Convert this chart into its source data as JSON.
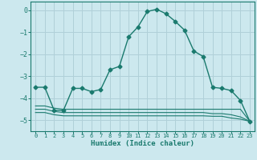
{
  "title": "",
  "xlabel": "Humidex (Indice chaleur)",
  "bg_color": "#cce8ee",
  "grid_color": "#b0d0d8",
  "line_color": "#1a7a6e",
  "xlim": [
    -0.5,
    23.5
  ],
  "ylim": [
    -5.5,
    0.4
  ],
  "xticks": [
    0,
    1,
    2,
    3,
    4,
    5,
    6,
    7,
    8,
    9,
    10,
    11,
    12,
    13,
    14,
    15,
    16,
    17,
    18,
    19,
    20,
    21,
    22,
    23
  ],
  "yticks": [
    0,
    -1,
    -2,
    -3,
    -4,
    -5
  ],
  "main_curve": {
    "x": [
      0,
      1,
      2,
      3,
      4,
      5,
      6,
      7,
      8,
      9,
      10,
      11,
      12,
      13,
      14,
      15,
      16,
      17,
      18,
      19,
      20,
      21,
      22,
      23
    ],
    "y": [
      -3.5,
      -3.5,
      -4.55,
      -4.55,
      -3.55,
      -3.55,
      -3.7,
      -3.6,
      -2.7,
      -2.55,
      -1.2,
      -0.75,
      -0.05,
      0.05,
      -0.15,
      -0.5,
      -0.9,
      -1.85,
      -2.1,
      -3.5,
      -3.55,
      -3.65,
      -4.1,
      -5.05
    ]
  },
  "flat_curves": [
    {
      "x": [
        0,
        1,
        2,
        3,
        4,
        5,
        6,
        7,
        8,
        9,
        10,
        11,
        12,
        13,
        14,
        15,
        16,
        17,
        18,
        19,
        20,
        21,
        22,
        23
      ],
      "y": [
        -4.35,
        -4.35,
        -4.45,
        -4.5,
        -4.5,
        -4.5,
        -4.5,
        -4.5,
        -4.5,
        -4.5,
        -4.5,
        -4.5,
        -4.5,
        -4.5,
        -4.5,
        -4.5,
        -4.5,
        -4.5,
        -4.5,
        -4.5,
        -4.5,
        -4.5,
        -4.5,
        -5.05
      ]
    },
    {
      "x": [
        0,
        1,
        2,
        3,
        4,
        5,
        6,
        7,
        8,
        9,
        10,
        11,
        12,
        13,
        14,
        15,
        16,
        17,
        18,
        19,
        20,
        21,
        22,
        23
      ],
      "y": [
        -4.5,
        -4.5,
        -4.6,
        -4.65,
        -4.65,
        -4.65,
        -4.65,
        -4.65,
        -4.65,
        -4.65,
        -4.65,
        -4.65,
        -4.65,
        -4.65,
        -4.65,
        -4.65,
        -4.65,
        -4.65,
        -4.65,
        -4.7,
        -4.7,
        -4.75,
        -4.85,
        -5.05
      ]
    },
    {
      "x": [
        0,
        1,
        2,
        3,
        4,
        5,
        6,
        7,
        8,
        9,
        10,
        11,
        12,
        13,
        14,
        15,
        16,
        17,
        18,
        19,
        20,
        21,
        22,
        23
      ],
      "y": [
        -4.65,
        -4.65,
        -4.75,
        -4.8,
        -4.8,
        -4.8,
        -4.8,
        -4.8,
        -4.8,
        -4.8,
        -4.8,
        -4.8,
        -4.8,
        -4.8,
        -4.8,
        -4.8,
        -4.8,
        -4.8,
        -4.8,
        -4.82,
        -4.82,
        -4.9,
        -4.95,
        -5.05
      ]
    }
  ]
}
